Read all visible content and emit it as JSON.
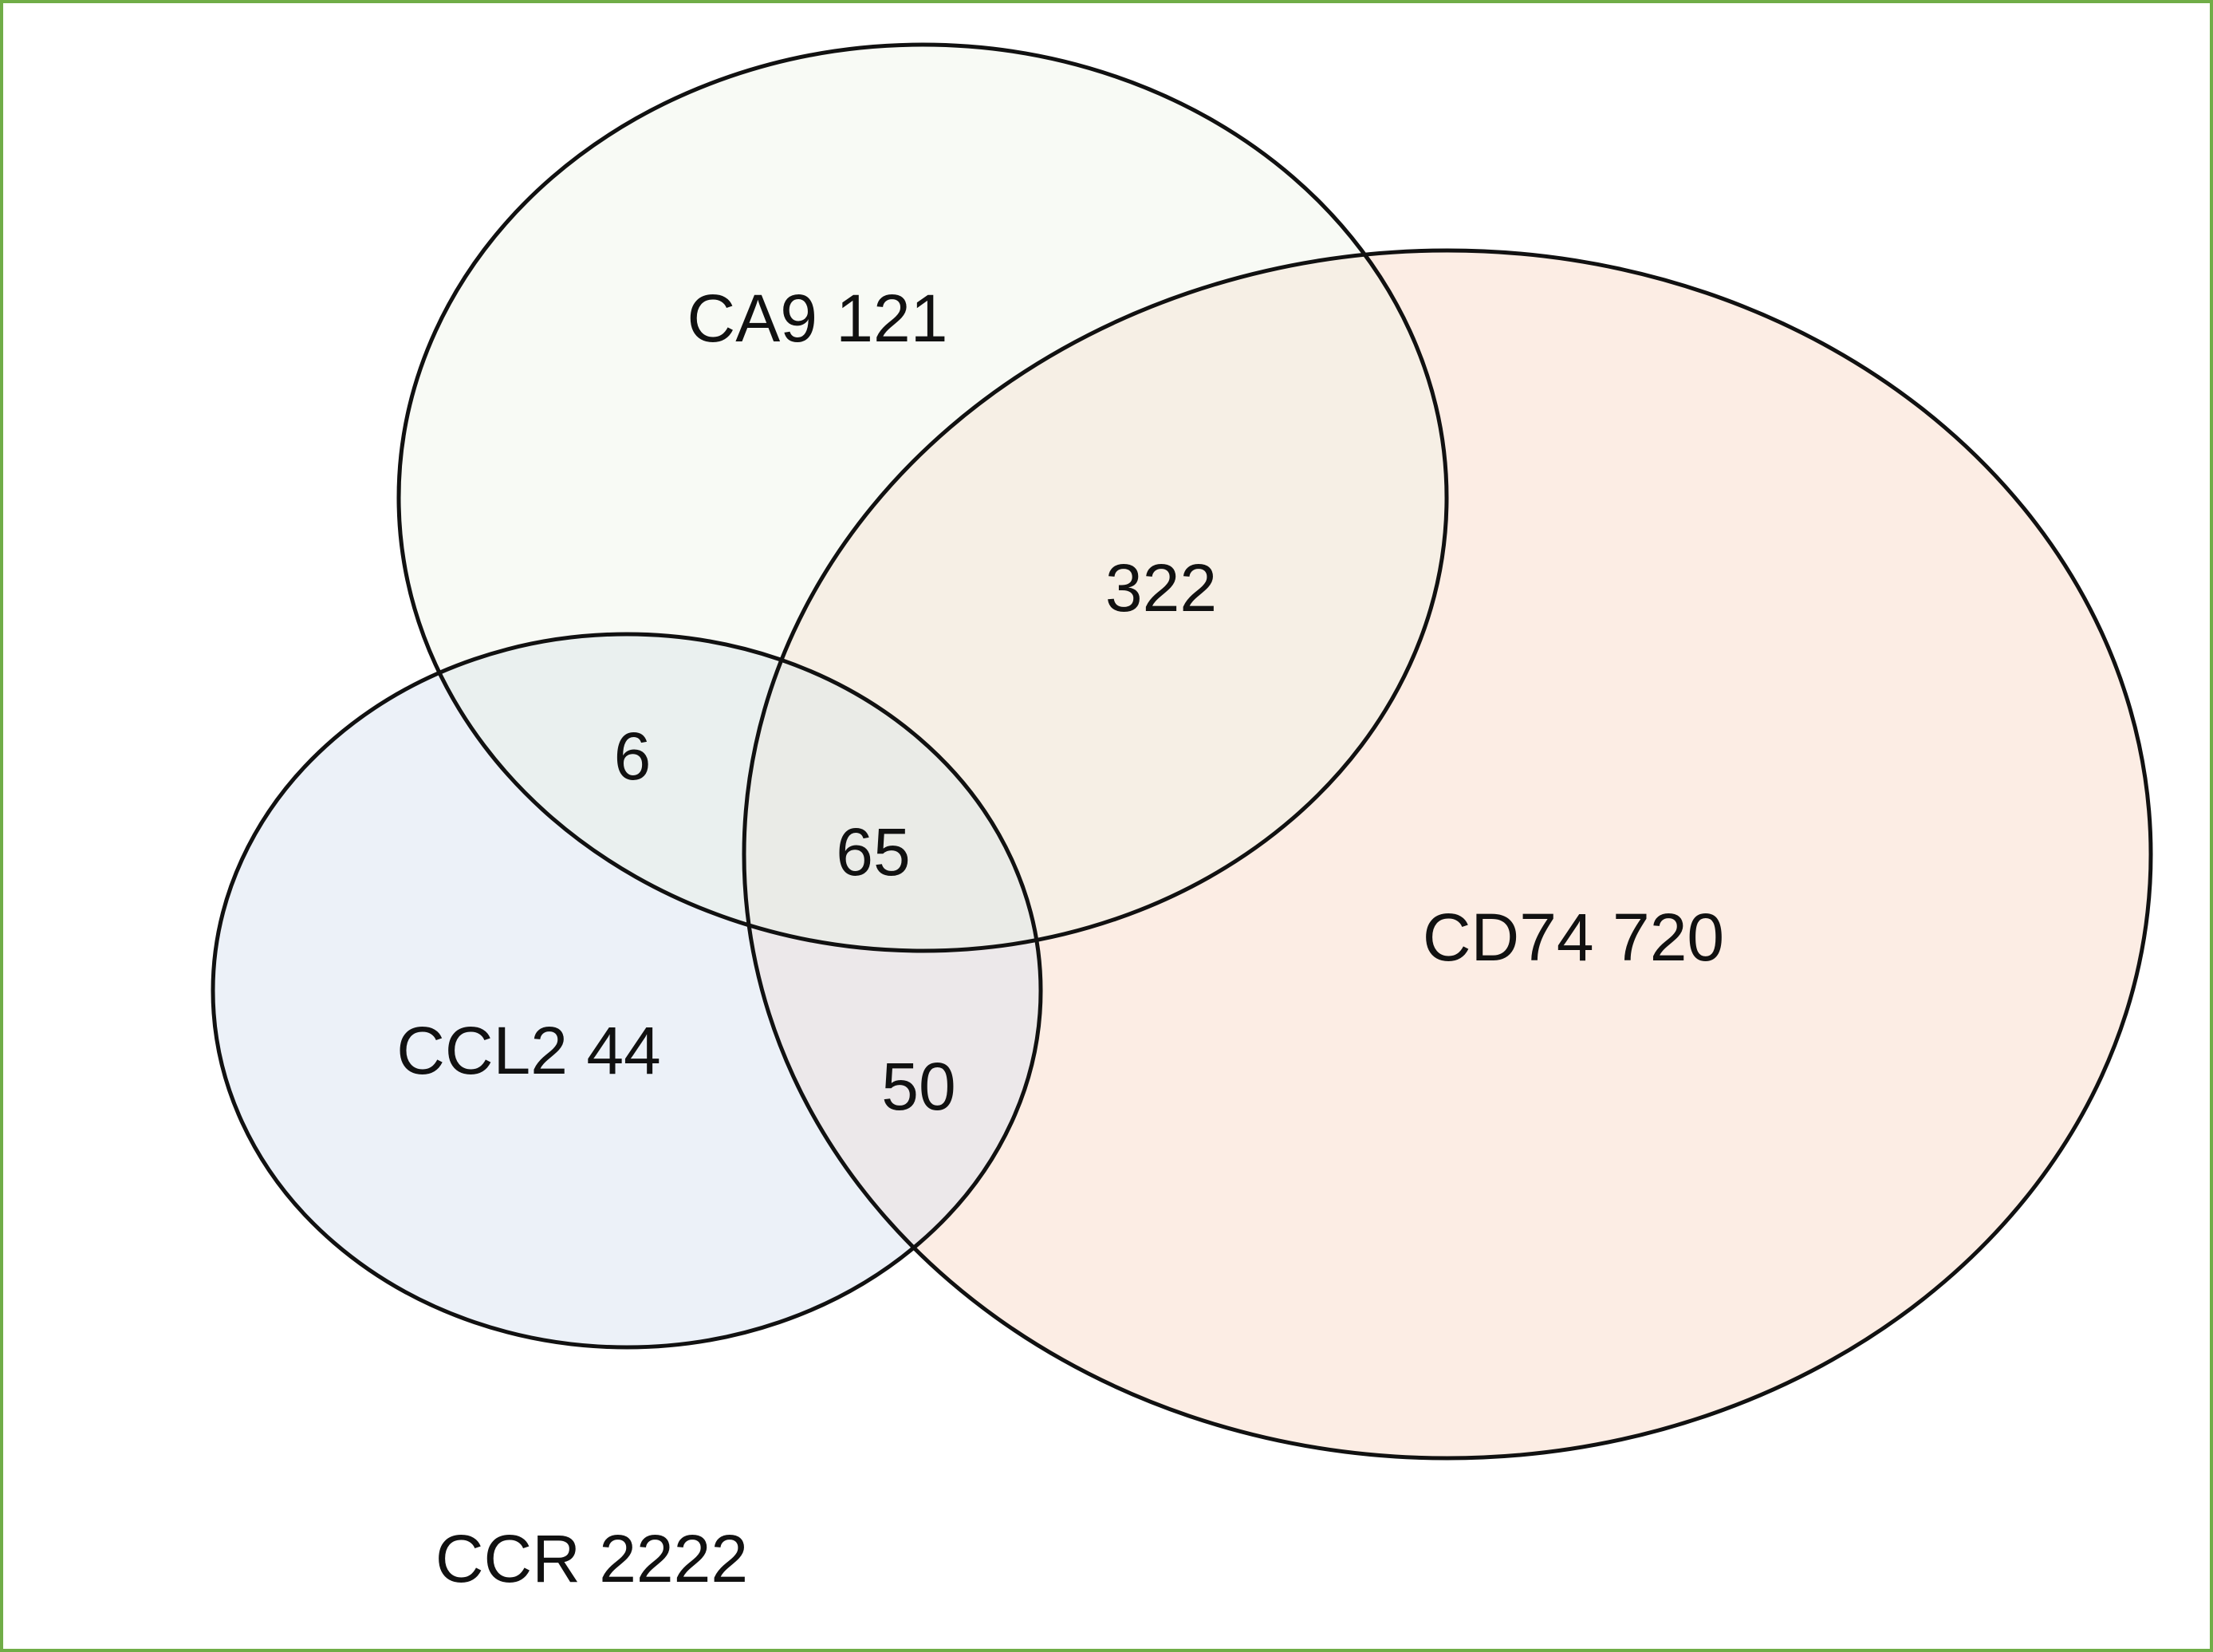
{
  "frame_color": "#70ad47",
  "stroke_color": "#111111",
  "sets": [
    {
      "label": "CA9 121",
      "fill": "#f8faf5"
    },
    {
      "label": "CD74 720",
      "fill": "#fcede4"
    },
    {
      "label": "CCL2 44",
      "fill": "#ecf1f8"
    }
  ],
  "intersections": {
    "ca9_cd74": "322",
    "ca9_ccl2": "6",
    "all_three": "65",
    "cd74_ccl2": "50"
  },
  "intersection_fills": {
    "ca9_cd74": "#f6efe5",
    "ca9_ccl2": "#eaf0ef",
    "all_three": "#eaebe7",
    "cd74_ccl2": "#ece8ea"
  },
  "universe": {
    "label": "CCR 2222"
  }
}
